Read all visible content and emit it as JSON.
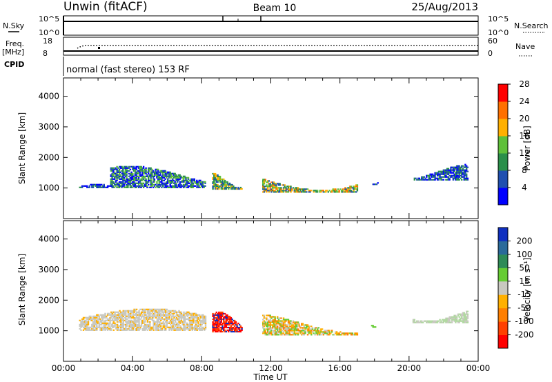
{
  "header": {
    "site": "Unwin (fitACF)",
    "beam": "Beam 10",
    "date": "25/Aug/2013"
  },
  "status_panels": {
    "nsky_label": "N.Sky",
    "nsky_ticks": [
      "10^5",
      "10^0"
    ],
    "nsearch_label": "N.Search",
    "nsearch_ticks": [
      "10^5",
      "10^0"
    ],
    "freq_label": "Freq.",
    "freq_unit": "[MHz]",
    "freq_ticks": [
      "18",
      "8"
    ],
    "nave_label": "Nave",
    "nave_ticks": [
      "60",
      "0"
    ],
    "cpid_label": "CPID",
    "cpid_text": "normal (fast stereo) 153 RF"
  },
  "chart_data": [
    {
      "type": "heatmap",
      "name_on_chart": "Power",
      "ylabel": "Slant Range [km]",
      "yticks": [
        1000,
        2000,
        3000,
        4000
      ],
      "ylim": [
        0,
        4600
      ],
      "xlim": [
        0,
        24
      ],
      "colorbar_label": "Power [dB]",
      "colorbar_ticks": [
        "4",
        "8",
        "12",
        "16",
        "20",
        "24",
        "28"
      ],
      "colorbar_colors": [
        "#0000ff",
        "#1f4fb0",
        "#2a8f4a",
        "#5fc03a",
        "#ffb000",
        "#ff7000",
        "#ff0000"
      ],
      "echo_regions": [
        {
          "t_start": 0.9,
          "t_end": 2.7,
          "range_low": 1000,
          "range_high": 1100,
          "level": "low"
        },
        {
          "t_start": 2.7,
          "t_end": 8.2,
          "range_low": 1000,
          "range_high": 1700,
          "level": "low-mid"
        },
        {
          "t_start": 8.6,
          "t_end": 10.3,
          "range_low": 950,
          "range_high": 1500,
          "level": "mid"
        },
        {
          "t_start": 11.5,
          "t_end": 17.0,
          "range_low": 850,
          "range_high": 1550,
          "level": "mid-high"
        },
        {
          "t_start": 17.8,
          "t_end": 18.2,
          "range_low": 1100,
          "range_high": 1250,
          "level": "low"
        },
        {
          "t_start": 20.2,
          "t_end": 23.4,
          "range_low": 1250,
          "range_high": 1750,
          "level": "low"
        }
      ]
    },
    {
      "type": "heatmap",
      "name_on_chart": "Velocity",
      "ylabel": "Slant Range [km]",
      "yticks": [
        1000,
        2000,
        3000,
        4000
      ],
      "ylim": [
        0,
        4600
      ],
      "xlim": [
        0,
        24
      ],
      "xticks": [
        "00:00",
        "04:00",
        "08:00",
        "12:00",
        "16:00",
        "20:00",
        "00:00"
      ],
      "xlabel": "Time UT",
      "colorbar_label": "Velocity [m s⁻¹]",
      "colorbar_ticks": [
        "200",
        "100",
        "50",
        "15",
        "-15",
        "-50",
        "-100",
        "-200"
      ],
      "colorbar_colors": [
        "#1030c0",
        "#2a6a9a",
        "#2e8b57",
        "#66cc33",
        "#c8c8c0",
        "#ffb000",
        "#ff7f00",
        "#ff4000",
        "#ff0000"
      ],
      "echo_regions": [
        {
          "t_start": 0.9,
          "t_end": 8.2,
          "range_low": 1000,
          "range_high": 1700,
          "velocity": "near-zero"
        },
        {
          "t_start": 8.6,
          "t_end": 10.3,
          "range_low": 950,
          "range_high": 1600,
          "velocity": "-200"
        },
        {
          "t_start": 11.5,
          "t_end": 17.0,
          "range_low": 850,
          "range_high": 1550,
          "velocity": "-50 to 50"
        },
        {
          "t_start": 17.8,
          "t_end": 18.2,
          "range_low": 1100,
          "range_high": 1250,
          "velocity": "50"
        },
        {
          "t_start": 20.2,
          "t_end": 23.4,
          "range_low": 1250,
          "range_high": 1750,
          "velocity": "15"
        }
      ]
    }
  ]
}
